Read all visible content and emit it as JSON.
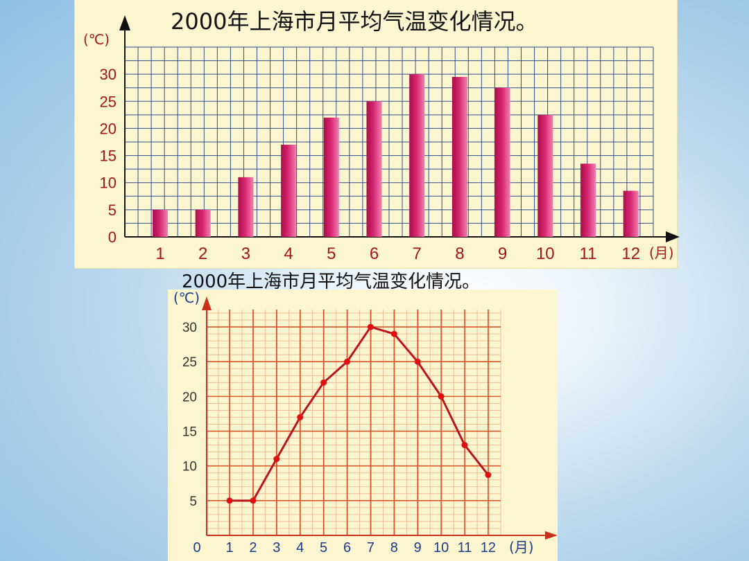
{
  "chart_data": [
    {
      "type": "bar",
      "title": "2000年上海市月平均气温变化情况。",
      "ylabel": "(℃)",
      "xlabel": "(月)",
      "categories": [
        "1",
        "2",
        "3",
        "4",
        "5",
        "6",
        "7",
        "8",
        "9",
        "10",
        "11",
        "12"
      ],
      "values": [
        5,
        5,
        11,
        17,
        22,
        25,
        30,
        29.5,
        27.5,
        22.5,
        13.5,
        8.5
      ],
      "y_ticks": [
        "0",
        "5",
        "10",
        "15",
        "20",
        "25",
        "30"
      ],
      "ylim": [
        0,
        35
      ],
      "grid": true,
      "colors": {
        "bar": "#d6246e",
        "grid": "#2f4d8a",
        "tick": "#a4141f"
      }
    },
    {
      "type": "line",
      "title": "2000年上海市月平均气温变化情况。",
      "ylabel": "(℃)",
      "xlabel": "(月)",
      "x": [
        "1",
        "2",
        "3",
        "4",
        "5",
        "6",
        "7",
        "8",
        "9",
        "10",
        "11",
        "12"
      ],
      "values": [
        5,
        5,
        11,
        17,
        22,
        25,
        30,
        29,
        25,
        20,
        13,
        8.7
      ],
      "x_origin_label": "0",
      "y_ticks": [
        "5",
        "10",
        "15",
        "20",
        "25",
        "30"
      ],
      "ylim": [
        0,
        32.5
      ],
      "grid": true,
      "colors": {
        "line": "#b8161c",
        "point": "#e01010",
        "grid": "#d9552a",
        "tick": "#1b3a8a"
      }
    }
  ]
}
